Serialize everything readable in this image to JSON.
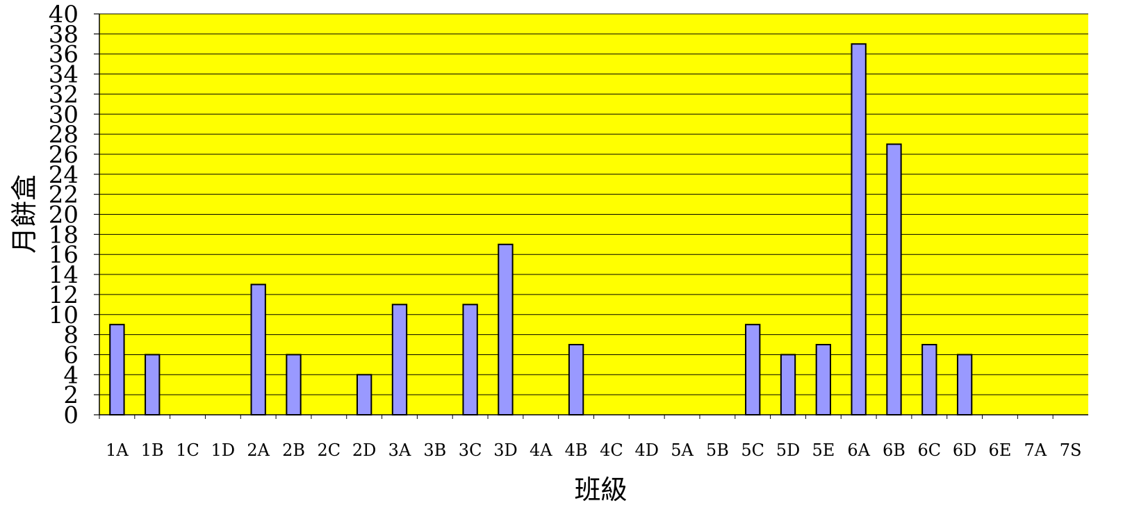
{
  "chart_data": {
    "type": "bar",
    "title": "",
    "xlabel": "班級",
    "ylabel": "月餅盒",
    "ylim": [
      0,
      40
    ],
    "ytick_step": 2,
    "grid": true,
    "legend": "none",
    "colors": {
      "plot_background": "#ffff00",
      "bar_fill": "#9999ff",
      "bar_stroke": "#000000",
      "gridline": "#000000"
    },
    "categories": [
      "1A",
      "1B",
      "1C",
      "1D",
      "2A",
      "2B",
      "2C",
      "2D",
      "3A",
      "3B",
      "3C",
      "3D",
      "4A",
      "4B",
      "4C",
      "4D",
      "5A",
      "5B",
      "5C",
      "5D",
      "5E",
      "6A",
      "6B",
      "6C",
      "6D",
      "6E",
      "7A",
      "7S"
    ],
    "values": [
      9,
      6,
      0,
      0,
      13,
      6,
      0,
      4,
      11,
      0,
      11,
      17,
      0,
      7,
      0,
      0,
      0,
      0,
      9,
      6,
      7,
      37,
      27,
      7,
      6,
      0,
      0,
      0
    ]
  }
}
